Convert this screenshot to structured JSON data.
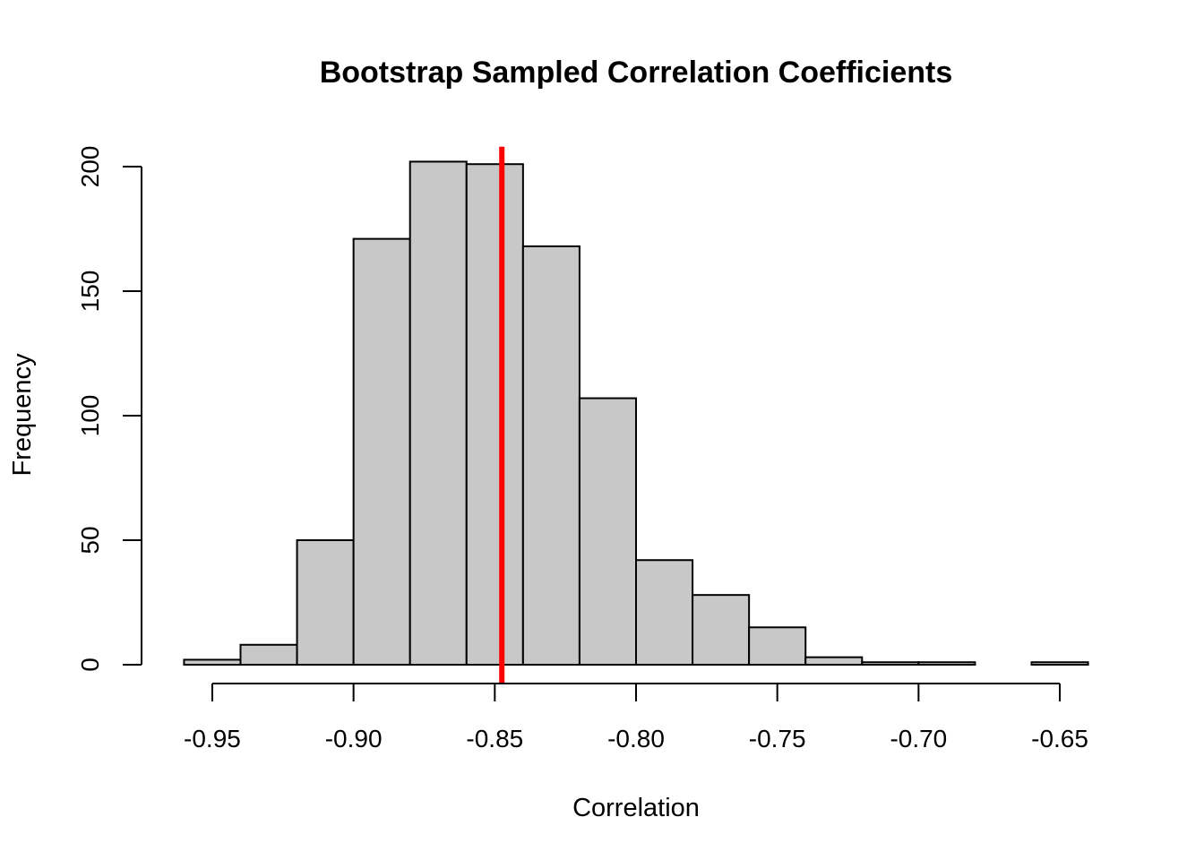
{
  "chart_data": {
    "type": "bar",
    "title": "Bootstrap Sampled Correlation Coefficients",
    "xlabel": "Correlation",
    "ylabel": "Frequency",
    "bin_edges": [
      -0.96,
      -0.94,
      -0.92,
      -0.9,
      -0.88,
      -0.86,
      -0.84,
      -0.82,
      -0.8,
      -0.78,
      -0.76,
      -0.74,
      -0.72,
      -0.7,
      -0.68,
      -0.66,
      -0.64
    ],
    "values": [
      2,
      8,
      50,
      171,
      202,
      201,
      168,
      107,
      42,
      28,
      15,
      3,
      1,
      1,
      0,
      1
    ],
    "x_ticks": [
      -0.95,
      -0.9,
      -0.85,
      -0.8,
      -0.75,
      -0.7,
      -0.65
    ],
    "x_tick_labels": [
      "-0.95",
      "-0.90",
      "-0.85",
      "-0.80",
      "-0.75",
      "-0.70",
      "-0.65"
    ],
    "y_ticks": [
      0,
      50,
      100,
      150,
      200
    ],
    "y_tick_labels": [
      "0",
      "50",
      "100",
      "150",
      "200"
    ],
    "xlim": [
      -0.9725,
      -0.6275
    ],
    "ylim": [
      0,
      208
    ],
    "reference_line": {
      "x": -0.8475,
      "color": "#ff0000"
    },
    "bar_color": "#c8c8c8",
    "grid": false,
    "legend": "none"
  }
}
